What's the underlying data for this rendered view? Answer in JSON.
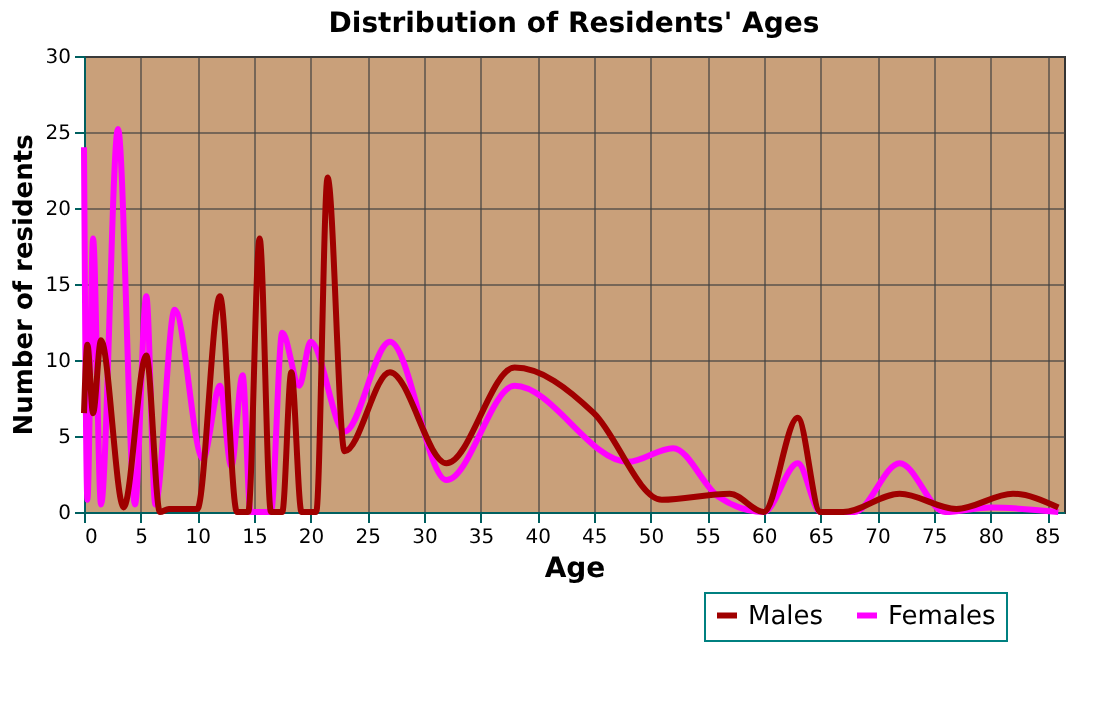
{
  "chart_data": {
    "type": "line",
    "title": "Distribution of Residents' Ages",
    "xlabel": "Age",
    "ylabel": "Number of residents",
    "xlim": [
      0,
      86.5
    ],
    "xticks": [
      0,
      5,
      10,
      15,
      20,
      25,
      30,
      35,
      40,
      45,
      50,
      55,
      60,
      65,
      70,
      75,
      80,
      85
    ],
    "ylim": [
      0,
      30
    ],
    "yticks": [
      0,
      5,
      10,
      15,
      20,
      25,
      30
    ],
    "grid": true,
    "legend": "bottom right",
    "series": [
      {
        "name": "Males",
        "color": "#a00000",
        "x": [
          0,
          0.3,
          0.8,
          1.5,
          3.5,
          5.5,
          6.7,
          7.5,
          10,
          12,
          13.5,
          14.5,
          15.5,
          16.5,
          17.5,
          18.3,
          19.2,
          20.5,
          21.5,
          23,
          27,
          32,
          38,
          45,
          51,
          57,
          60,
          63,
          65,
          67,
          72,
          77,
          82,
          86
        ],
        "values": [
          6.5,
          11,
          6.5,
          11.3,
          0.3,
          10.3,
          0,
          0.2,
          0.2,
          14.2,
          0,
          0,
          18,
          0,
          0,
          9.2,
          0,
          0,
          22,
          4,
          9.2,
          3.2,
          9.5,
          6.5,
          0.8,
          1.2,
          0,
          6.2,
          0,
          0,
          1.2,
          0.2,
          1.2,
          0.3
        ]
      },
      {
        "name": "Females",
        "color": "#ff00ff",
        "x": [
          0,
          0.3,
          0.8,
          1.5,
          3,
          4.5,
          5.5,
          6.3,
          8,
          10.5,
          12,
          13,
          14,
          14.7,
          15.5,
          16.5,
          17.5,
          19,
          20,
          23,
          27,
          32,
          38,
          48,
          52,
          56,
          60,
          63,
          65,
          68,
          72,
          76,
          80,
          86
        ],
        "values": [
          24,
          0.8,
          18,
          0.5,
          25.2,
          0.5,
          14.2,
          0.5,
          13.3,
          3.5,
          8.3,
          3,
          9,
          0,
          0,
          0,
          11.8,
          8.3,
          11.2,
          5.3,
          11.2,
          2.1,
          8.3,
          3.3,
          4.2,
          1,
          0,
          3.2,
          0,
          0,
          3.2,
          0,
          0.3,
          0
        ]
      }
    ]
  }
}
